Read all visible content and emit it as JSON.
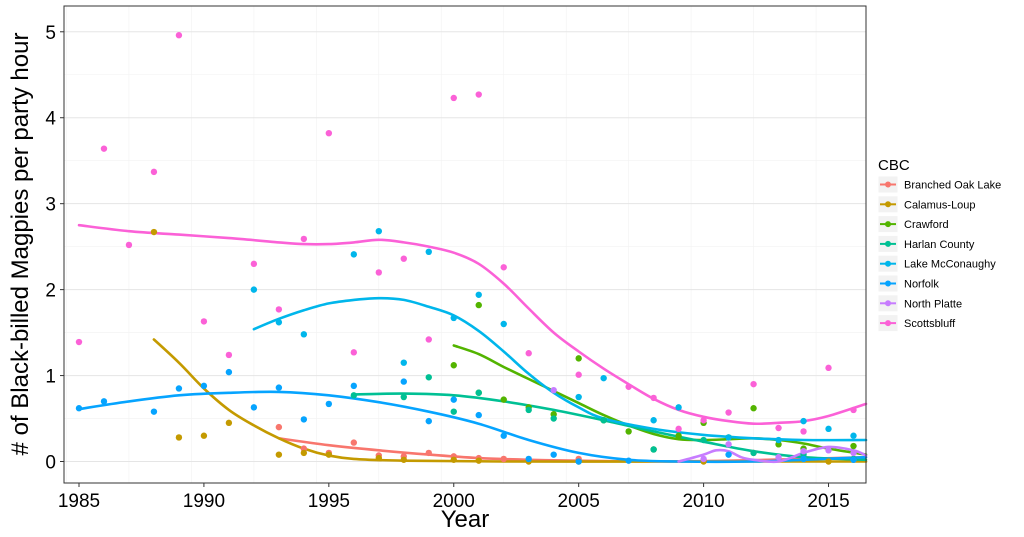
{
  "colors": {
    "Branched Oak Lake": "#F8766D",
    "Calamus-Loup": "#C49A00",
    "Crawford": "#53B400",
    "Harlan County": "#00C094",
    "Lake McConaughy": "#00B6EB",
    "Norfolk": "#06A4FF",
    "North Platte": "#C77CFF",
    "Scottsbluff": "#FB61D7"
  },
  "chart_data": {
    "type": "scatter",
    "xlabel": "Year",
    "ylabel": "# of Black-billed Magpies per party hour",
    "xlim": [
      1984.4,
      2016.5
    ],
    "ylim": [
      -0.25,
      5.3
    ],
    "x_ticks": [
      1985,
      1990,
      1995,
      2000,
      2005,
      2010,
      2015
    ],
    "y_ticks": [
      0,
      1,
      2,
      3,
      4,
      5
    ],
    "x_tick_labels": [
      "1985",
      "1990",
      "1995",
      "2000",
      "2005",
      "2010",
      "2015"
    ],
    "y_tick_labels": [
      "0",
      "1",
      "2",
      "3",
      "4",
      "5"
    ],
    "grid": true,
    "legend_title": "CBC",
    "legend_position": "right",
    "series": [
      {
        "name": "Branched Oak Lake",
        "points": [
          [
            1993,
            0.4
          ],
          [
            1994,
            0.15
          ],
          [
            1995,
            0.1
          ],
          [
            1996,
            0.22
          ],
          [
            1997,
            0.07
          ],
          [
            1998,
            0.06
          ],
          [
            1999,
            0.1
          ],
          [
            2000,
            0.06
          ],
          [
            2001,
            0.04
          ],
          [
            2002,
            0.03
          ],
          [
            2005,
            0.03
          ],
          [
            2010,
            0.02
          ],
          [
            2012,
            0.1
          ],
          [
            2014,
            0.03
          ],
          [
            2016,
            0.02
          ]
        ],
        "smooth": [
          [
            1993,
            0.27
          ],
          [
            1995,
            0.19
          ],
          [
            1997,
            0.13
          ],
          [
            1999,
            0.08
          ],
          [
            2001,
            0.04
          ],
          [
            2003,
            0.02
          ],
          [
            2005,
            0.01
          ],
          [
            2008,
            0.0
          ],
          [
            2011,
            0.01
          ],
          [
            2014,
            0.03
          ],
          [
            2016.5,
            0.05
          ]
        ]
      },
      {
        "name": "Calamus-Loup",
        "points": [
          [
            1988,
            2.67
          ],
          [
            1989,
            0.28
          ],
          [
            1990,
            0.3
          ],
          [
            1991,
            0.45
          ],
          [
            1993,
            0.08
          ],
          [
            1994,
            0.1
          ],
          [
            1995,
            0.08
          ],
          [
            1997,
            0.04
          ],
          [
            1998,
            0.02
          ],
          [
            2000,
            0.02
          ],
          [
            2001,
            0.01
          ],
          [
            2003,
            0.0
          ],
          [
            2005,
            0.0
          ],
          [
            2010,
            0.0
          ],
          [
            2015,
            0.0
          ]
        ],
        "smooth": [
          [
            1988,
            1.42
          ],
          [
            1989,
            1.15
          ],
          [
            1990,
            0.85
          ],
          [
            1991,
            0.6
          ],
          [
            1992,
            0.42
          ],
          [
            1993,
            0.27
          ],
          [
            1994,
            0.15
          ],
          [
            1995,
            0.07
          ],
          [
            1996,
            0.03
          ],
          [
            1998,
            0.01
          ],
          [
            2002,
            0.0
          ],
          [
            2008,
            0.0
          ],
          [
            2012,
            0.0
          ],
          [
            2016.5,
            0.0
          ]
        ]
      },
      {
        "name": "Crawford",
        "points": [
          [
            2000,
            1.12
          ],
          [
            2001,
            1.82
          ],
          [
            2001,
            0.8
          ],
          [
            2002,
            0.72
          ],
          [
            2003,
            0.63
          ],
          [
            2004,
            0.55
          ],
          [
            2005,
            1.2
          ],
          [
            2006,
            0.48
          ],
          [
            2007,
            0.35
          ],
          [
            2008,
            0.14
          ],
          [
            2009,
            0.3
          ],
          [
            2010,
            0.45
          ],
          [
            2011,
            0.28
          ],
          [
            2012,
            0.62
          ],
          [
            2013,
            0.2
          ],
          [
            2014,
            0.15
          ],
          [
            2016,
            0.18
          ]
        ],
        "smooth": [
          [
            2000,
            1.35
          ],
          [
            2001,
            1.25
          ],
          [
            2002,
            1.1
          ],
          [
            2003,
            0.96
          ],
          [
            2004,
            0.82
          ],
          [
            2005,
            0.68
          ],
          [
            2006,
            0.54
          ],
          [
            2007,
            0.42
          ],
          [
            2008,
            0.32
          ],
          [
            2009,
            0.26
          ],
          [
            2010,
            0.25
          ],
          [
            2011,
            0.26
          ],
          [
            2012,
            0.27
          ],
          [
            2013,
            0.25
          ],
          [
            2014,
            0.21
          ],
          [
            2015,
            0.15
          ],
          [
            2016.5,
            0.08
          ]
        ]
      },
      {
        "name": "Harlan County",
        "points": [
          [
            1996,
            0.77
          ],
          [
            1998,
            0.75
          ],
          [
            1999,
            0.98
          ],
          [
            2000,
            0.58
          ],
          [
            2001,
            0.8
          ],
          [
            2003,
            0.6
          ],
          [
            2004,
            0.5
          ],
          [
            2006,
            0.48
          ],
          [
            2008,
            0.14
          ],
          [
            2010,
            0.25
          ],
          [
            2012,
            0.1
          ],
          [
            2014,
            0.08
          ],
          [
            2016,
            0.03
          ]
        ],
        "smooth": [
          [
            1996,
            0.78
          ],
          [
            1998,
            0.79
          ],
          [
            2000,
            0.77
          ],
          [
            2002,
            0.7
          ],
          [
            2004,
            0.6
          ],
          [
            2006,
            0.48
          ],
          [
            2008,
            0.35
          ],
          [
            2010,
            0.23
          ],
          [
            2012,
            0.12
          ],
          [
            2014,
            0.05
          ],
          [
            2016.5,
            0.02
          ]
        ]
      },
      {
        "name": "Lake McConaughy",
        "points": [
          [
            1992,
            2.0
          ],
          [
            1993,
            1.62
          ],
          [
            1994,
            1.48
          ],
          [
            1996,
            2.41
          ],
          [
            1997,
            2.68
          ],
          [
            1998,
            1.15
          ],
          [
            1999,
            2.44
          ],
          [
            2000,
            1.67
          ],
          [
            2001,
            1.94
          ],
          [
            2002,
            1.6
          ],
          [
            2005,
            0.75
          ],
          [
            2006,
            0.97
          ],
          [
            2008,
            0.48
          ],
          [
            2009,
            0.63
          ],
          [
            2011,
            0.28
          ],
          [
            2013,
            0.25
          ],
          [
            2014,
            0.47
          ],
          [
            2015,
            0.38
          ],
          [
            2016,
            0.3
          ]
        ],
        "smooth": [
          [
            1992,
            1.54
          ],
          [
            1993,
            1.66
          ],
          [
            1994,
            1.76
          ],
          [
            1995,
            1.84
          ],
          [
            1996,
            1.88
          ],
          [
            1997,
            1.9
          ],
          [
            1998,
            1.88
          ],
          [
            1999,
            1.8
          ],
          [
            2000,
            1.7
          ],
          [
            2001,
            1.52
          ],
          [
            2002,
            1.28
          ],
          [
            2003,
            1.02
          ],
          [
            2004,
            0.8
          ],
          [
            2005,
            0.63
          ],
          [
            2006,
            0.5
          ],
          [
            2008,
            0.38
          ],
          [
            2010,
            0.31
          ],
          [
            2012,
            0.27
          ],
          [
            2014,
            0.25
          ],
          [
            2016.5,
            0.25
          ]
        ]
      },
      {
        "name": "Norfolk",
        "points": [
          [
            1985,
            0.62
          ],
          [
            1986,
            0.7
          ],
          [
            1988,
            0.58
          ],
          [
            1989,
            0.85
          ],
          [
            1990,
            0.88
          ],
          [
            1991,
            1.04
          ],
          [
            1992,
            0.63
          ],
          [
            1993,
            0.86
          ],
          [
            1994,
            0.49
          ],
          [
            1995,
            0.67
          ],
          [
            1996,
            0.88
          ],
          [
            1998,
            0.93
          ],
          [
            1999,
            0.47
          ],
          [
            2000,
            0.72
          ],
          [
            2001,
            0.54
          ],
          [
            2002,
            0.3
          ],
          [
            2003,
            0.03
          ],
          [
            2004,
            0.08
          ],
          [
            2005,
            0.0
          ],
          [
            2007,
            0.01
          ],
          [
            2011,
            0.08
          ],
          [
            2014,
            0.03
          ],
          [
            2016,
            0.02
          ]
        ],
        "smooth": [
          [
            1985,
            0.61
          ],
          [
            1987,
            0.7
          ],
          [
            1989,
            0.77
          ],
          [
            1991,
            0.8
          ],
          [
            1993,
            0.81
          ],
          [
            1995,
            0.77
          ],
          [
            1997,
            0.69
          ],
          [
            1999,
            0.58
          ],
          [
            2001,
            0.44
          ],
          [
            2003,
            0.25
          ],
          [
            2005,
            0.1
          ],
          [
            2007,
            0.02
          ],
          [
            2009,
            0.0
          ],
          [
            2012,
            0.0
          ],
          [
            2014,
            0.02
          ],
          [
            2016.5,
            0.05
          ]
        ]
      },
      {
        "name": "North Platte",
        "points": [
          [
            2004,
            0.83
          ],
          [
            2010,
            0.03
          ],
          [
            2011,
            0.2
          ],
          [
            2013,
            0.05
          ],
          [
            2014,
            0.12
          ],
          [
            2015,
            0.13
          ],
          [
            2016,
            0.1
          ]
        ],
        "smooth": [
          [
            2009,
            0.0
          ],
          [
            2010,
            0.08
          ],
          [
            2010.5,
            0.13
          ],
          [
            2011,
            0.12
          ],
          [
            2011.5,
            0.05
          ],
          [
            2012,
            0.02
          ],
          [
            2013,
            0.0
          ],
          [
            2014,
            0.1
          ],
          [
            2015,
            0.17
          ],
          [
            2016,
            0.13
          ],
          [
            2016.5,
            0.07
          ]
        ]
      },
      {
        "name": "Scottsbluff",
        "points": [
          [
            1985,
            1.39
          ],
          [
            1986,
            3.64
          ],
          [
            1987,
            2.52
          ],
          [
            1988,
            3.37
          ],
          [
            1989,
            4.96
          ],
          [
            1990,
            1.63
          ],
          [
            1991,
            1.24
          ],
          [
            1992,
            2.3
          ],
          [
            1993,
            1.77
          ],
          [
            1994,
            2.59
          ],
          [
            1995,
            3.82
          ],
          [
            1996,
            1.27
          ],
          [
            1997,
            2.2
          ],
          [
            1998,
            2.36
          ],
          [
            1999,
            1.42
          ],
          [
            2000,
            4.23
          ],
          [
            2001,
            4.27
          ],
          [
            2002,
            2.26
          ],
          [
            2003,
            1.26
          ],
          [
            2005,
            1.01
          ],
          [
            2007,
            0.87
          ],
          [
            2008,
            0.74
          ],
          [
            2009,
            0.38
          ],
          [
            2010,
            0.48
          ],
          [
            2011,
            0.57
          ],
          [
            2012,
            0.9
          ],
          [
            2013,
            0.39
          ],
          [
            2014,
            0.35
          ],
          [
            2015,
            1.09
          ],
          [
            2016,
            0.6
          ]
        ],
        "smooth": [
          [
            1985,
            2.75
          ],
          [
            1987,
            2.68
          ],
          [
            1989,
            2.64
          ],
          [
            1991,
            2.6
          ],
          [
            1993,
            2.55
          ],
          [
            1994,
            2.53
          ],
          [
            1995,
            2.53
          ],
          [
            1996,
            2.55
          ],
          [
            1997,
            2.58
          ],
          [
            1998,
            2.55
          ],
          [
            1999,
            2.5
          ],
          [
            2000,
            2.43
          ],
          [
            2001,
            2.3
          ],
          [
            2002,
            2.07
          ],
          [
            2003,
            1.78
          ],
          [
            2004,
            1.5
          ],
          [
            2005,
            1.28
          ],
          [
            2006,
            1.08
          ],
          [
            2007,
            0.9
          ],
          [
            2008,
            0.73
          ],
          [
            2009,
            0.6
          ],
          [
            2010,
            0.52
          ],
          [
            2011,
            0.47
          ],
          [
            2012,
            0.44
          ],
          [
            2013,
            0.45
          ],
          [
            2014,
            0.47
          ],
          [
            2015,
            0.53
          ],
          [
            2016.5,
            0.67
          ]
        ]
      }
    ]
  }
}
